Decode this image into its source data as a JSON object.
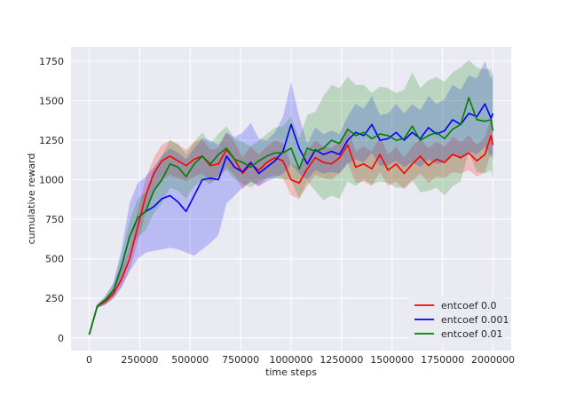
{
  "chart_data": {
    "type": "line",
    "title": "",
    "xlabel": "time steps",
    "ylabel": "cumulative reward",
    "xlim": [
      -90000,
      2090000
    ],
    "ylim": [
      -80,
      1840
    ],
    "x_ticks": [
      0,
      250000,
      500000,
      750000,
      1000000,
      1250000,
      1500000,
      1750000,
      2000000
    ],
    "y_ticks": [
      0,
      250,
      500,
      750,
      1000,
      1250,
      1500,
      1750
    ],
    "grid": true,
    "legend_position": "bottom-right",
    "background": "#eaeaf2",
    "series": [
      {
        "name": "entcoef 0.0",
        "color": "#ff0000",
        "x": [
          0,
          40000,
          80000,
          120000,
          160000,
          200000,
          240000,
          280000,
          320000,
          360000,
          400000,
          440000,
          480000,
          520000,
          560000,
          600000,
          640000,
          680000,
          720000,
          760000,
          800000,
          840000,
          880000,
          920000,
          960000,
          1000000,
          1040000,
          1080000,
          1120000,
          1160000,
          1200000,
          1240000,
          1280000,
          1320000,
          1360000,
          1400000,
          1440000,
          1480000,
          1520000,
          1560000,
          1600000,
          1640000,
          1680000,
          1720000,
          1760000,
          1800000,
          1840000,
          1880000,
          1920000,
          1960000,
          1990000,
          2000000
        ],
        "y": [
          20,
          200,
          230,
          280,
          370,
          500,
          700,
          900,
          1040,
          1120,
          1150,
          1120,
          1090,
          1130,
          1150,
          1090,
          1100,
          1190,
          1130,
          1040,
          1100,
          1060,
          1110,
          1140,
          1120,
          1000,
          980,
          1070,
          1140,
          1110,
          1100,
          1140,
          1220,
          1080,
          1100,
          1070,
          1160,
          1060,
          1100,
          1040,
          1100,
          1150,
          1090,
          1130,
          1110,
          1160,
          1140,
          1170,
          1120,
          1160,
          1280,
          1220
        ],
        "lower": [
          20,
          190,
          210,
          250,
          320,
          430,
          600,
          790,
          940,
          1000,
          1030,
          1010,
          990,
          1020,
          1040,
          990,
          1000,
          1080,
          1030,
          940,
          990,
          960,
          1010,
          1030,
          1010,
          900,
          880,
          960,
          1030,
          1010,
          1000,
          1040,
          1110,
          980,
          990,
          960,
          1050,
          960,
          990,
          940,
          990,
          1040,
          980,
          1020,
          1010,
          1050,
          1040,
          1060,
          1020,
          1050,
          1170,
          1120
        ],
        "upper": [
          20,
          210,
          250,
          310,
          420,
          570,
          800,
          1010,
          1140,
          1220,
          1250,
          1220,
          1190,
          1240,
          1260,
          1190,
          1200,
          1300,
          1240,
          1140,
          1210,
          1160,
          1210,
          1250,
          1230,
          1100,
          1080,
          1180,
          1250,
          1210,
          1200,
          1240,
          1330,
          1180,
          1210,
          1180,
          1270,
          1160,
          1210,
          1140,
          1210,
          1260,
          1200,
          1240,
          1210,
          1270,
          1240,
          1280,
          1220,
          1270,
          1390,
          1320
        ]
      },
      {
        "name": "entcoef 0.001",
        "color": "#0000ff",
        "x": [
          0,
          40000,
          80000,
          120000,
          160000,
          200000,
          240000,
          280000,
          320000,
          360000,
          400000,
          440000,
          480000,
          520000,
          560000,
          600000,
          640000,
          680000,
          720000,
          760000,
          800000,
          840000,
          880000,
          920000,
          960000,
          1000000,
          1040000,
          1080000,
          1120000,
          1160000,
          1200000,
          1240000,
          1280000,
          1320000,
          1360000,
          1400000,
          1440000,
          1480000,
          1520000,
          1560000,
          1600000,
          1640000,
          1680000,
          1720000,
          1760000,
          1800000,
          1840000,
          1880000,
          1920000,
          1960000,
          1990000,
          2000000
        ],
        "y": [
          20,
          200,
          240,
          300,
          450,
          640,
          760,
          800,
          830,
          880,
          900,
          860,
          800,
          900,
          1000,
          1010,
          1000,
          1150,
          1080,
          1050,
          1110,
          1040,
          1080,
          1120,
          1180,
          1350,
          1200,
          1100,
          1190,
          1160,
          1180,
          1160,
          1250,
          1300,
          1280,
          1350,
          1250,
          1260,
          1300,
          1250,
          1300,
          1260,
          1330,
          1290,
          1310,
          1380,
          1350,
          1420,
          1400,
          1480,
          1390,
          1420
        ],
        "lower": [
          20,
          190,
          210,
          250,
          320,
          420,
          500,
          540,
          550,
          560,
          570,
          560,
          540,
          520,
          560,
          600,
          650,
          850,
          900,
          950,
          990,
          960,
          990,
          1010,
          1040,
          1100,
          1040,
          1000,
          1060,
          1040,
          1050,
          1040,
          1100,
          1130,
          1110,
          1170,
          1090,
          1090,
          1120,
          1080,
          1110,
          1080,
          1130,
          1100,
          1110,
          1160,
          1130,
          1180,
          1160,
          1210,
          1140,
          1160
        ],
        "upper": [
          20,
          210,
          260,
          350,
          560,
          850,
          980,
          1020,
          1080,
          1150,
          1200,
          1170,
          1130,
          1200,
          1260,
          1250,
          1220,
          1300,
          1270,
          1300,
          1360,
          1260,
          1250,
          1300,
          1400,
          1620,
          1400,
          1230,
          1330,
          1290,
          1310,
          1290,
          1400,
          1480,
          1450,
          1530,
          1410,
          1420,
          1480,
          1420,
          1480,
          1440,
          1530,
          1480,
          1510,
          1600,
          1570,
          1660,
          1640,
          1750,
          1640,
          1690
        ]
      },
      {
        "name": "entcoef 0.01",
        "color": "#008000",
        "x": [
          0,
          40000,
          80000,
          120000,
          160000,
          200000,
          240000,
          280000,
          320000,
          360000,
          400000,
          440000,
          480000,
          520000,
          560000,
          600000,
          640000,
          680000,
          720000,
          760000,
          800000,
          840000,
          880000,
          920000,
          960000,
          1000000,
          1040000,
          1080000,
          1120000,
          1160000,
          1200000,
          1240000,
          1280000,
          1320000,
          1360000,
          1400000,
          1440000,
          1480000,
          1520000,
          1560000,
          1600000,
          1640000,
          1680000,
          1720000,
          1760000,
          1800000,
          1840000,
          1880000,
          1920000,
          1960000,
          1990000,
          2000000
        ],
        "y": [
          20,
          200,
          240,
          300,
          450,
          640,
          760,
          800,
          930,
          1000,
          1100,
          1080,
          1020,
          1100,
          1150,
          1100,
          1160,
          1200,
          1130,
          1110,
          1080,
          1120,
          1150,
          1170,
          1170,
          1200,
          1070,
          1200,
          1180,
          1200,
          1250,
          1230,
          1320,
          1280,
          1300,
          1260,
          1290,
          1280,
          1250,
          1260,
          1340,
          1250,
          1280,
          1300,
          1260,
          1320,
          1350,
          1520,
          1380,
          1370,
          1380,
          1310
        ],
        "lower": [
          20,
          190,
          210,
          260,
          380,
          540,
          640,
          680,
          790,
          850,
          950,
          930,
          880,
          960,
          1000,
          970,
          1030,
          1060,
          1000,
          980,
          950,
          990,
          1010,
          1010,
          1000,
          1000,
          880,
          990,
          930,
          870,
          900,
          880,
          990,
          960,
          1000,
          970,
          990,
          980,
          950,
          950,
          1000,
          920,
          930,
          950,
          900,
          960,
          990,
          1180,
          1050,
          1040,
          1060,
          1000
        ],
        "upper": [
          20,
          210,
          270,
          340,
          520,
          740,
          880,
          920,
          1070,
          1150,
          1250,
          1230,
          1160,
          1240,
          1300,
          1230,
          1290,
          1340,
          1260,
          1240,
          1210,
          1250,
          1290,
          1330,
          1340,
          1400,
          1260,
          1410,
          1430,
          1530,
          1600,
          1580,
          1650,
          1600,
          1600,
          1550,
          1590,
          1580,
          1550,
          1570,
          1680,
          1580,
          1630,
          1650,
          1620,
          1680,
          1710,
          1760,
          1710,
          1700,
          1700,
          1620
        ]
      }
    ]
  }
}
